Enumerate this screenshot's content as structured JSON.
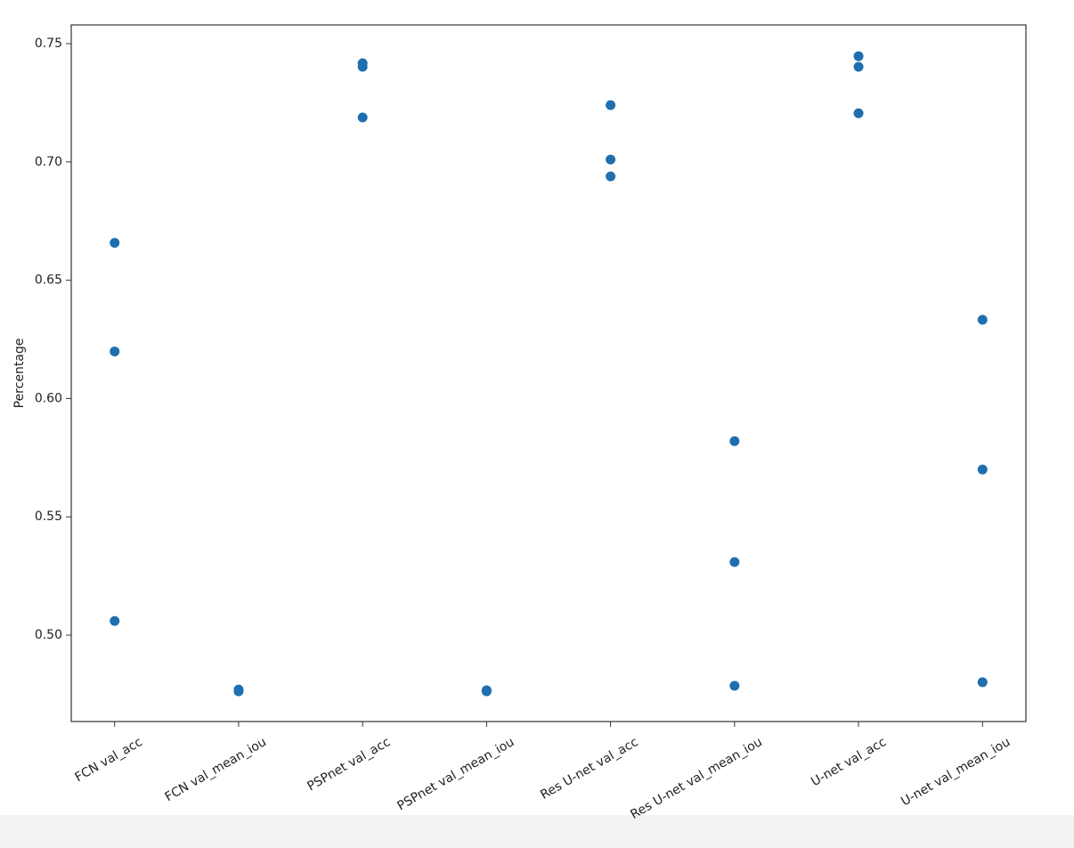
{
  "chart_data": {
    "type": "scatter",
    "y_label": "Percentage",
    "categories": [
      "FCN val_acc",
      "FCN val_mean_iou",
      "PSPnet val_acc",
      "PSPnet val_mean_iou",
      "Res U-net val_acc",
      "Res U-net val_mean_iou",
      "U-net val_acc",
      "U-net val_mean_iou"
    ],
    "series": [
      {
        "color": "#1f6fb0",
        "values": [
          0.6658,
          0.477,
          0.7417,
          0.4767,
          0.724,
          0.582,
          0.7447,
          0.6333
        ]
      },
      {
        "color": "#1f6fb0",
        "values": [
          0.6199,
          0.4763,
          0.7402,
          0.4763,
          0.701,
          0.5309,
          0.7402,
          0.57
        ]
      },
      {
        "color": "#1f6fb0",
        "values": [
          0.506,
          0.4763,
          0.7188,
          0.4763,
          0.6939,
          0.4786,
          0.7206,
          0.4801
        ]
      }
    ],
    "ylim": [
      0.4635,
      0.7579
    ],
    "yticks": [
      {
        "value": 0.5,
        "label": "0.50"
      },
      {
        "value": 0.55,
        "label": "0.55"
      },
      {
        "value": 0.6,
        "label": "0.60"
      },
      {
        "value": 0.65,
        "label": "0.65"
      },
      {
        "value": 0.7,
        "label": "0.70"
      },
      {
        "value": 0.75,
        "label": "0.75"
      }
    ]
  }
}
